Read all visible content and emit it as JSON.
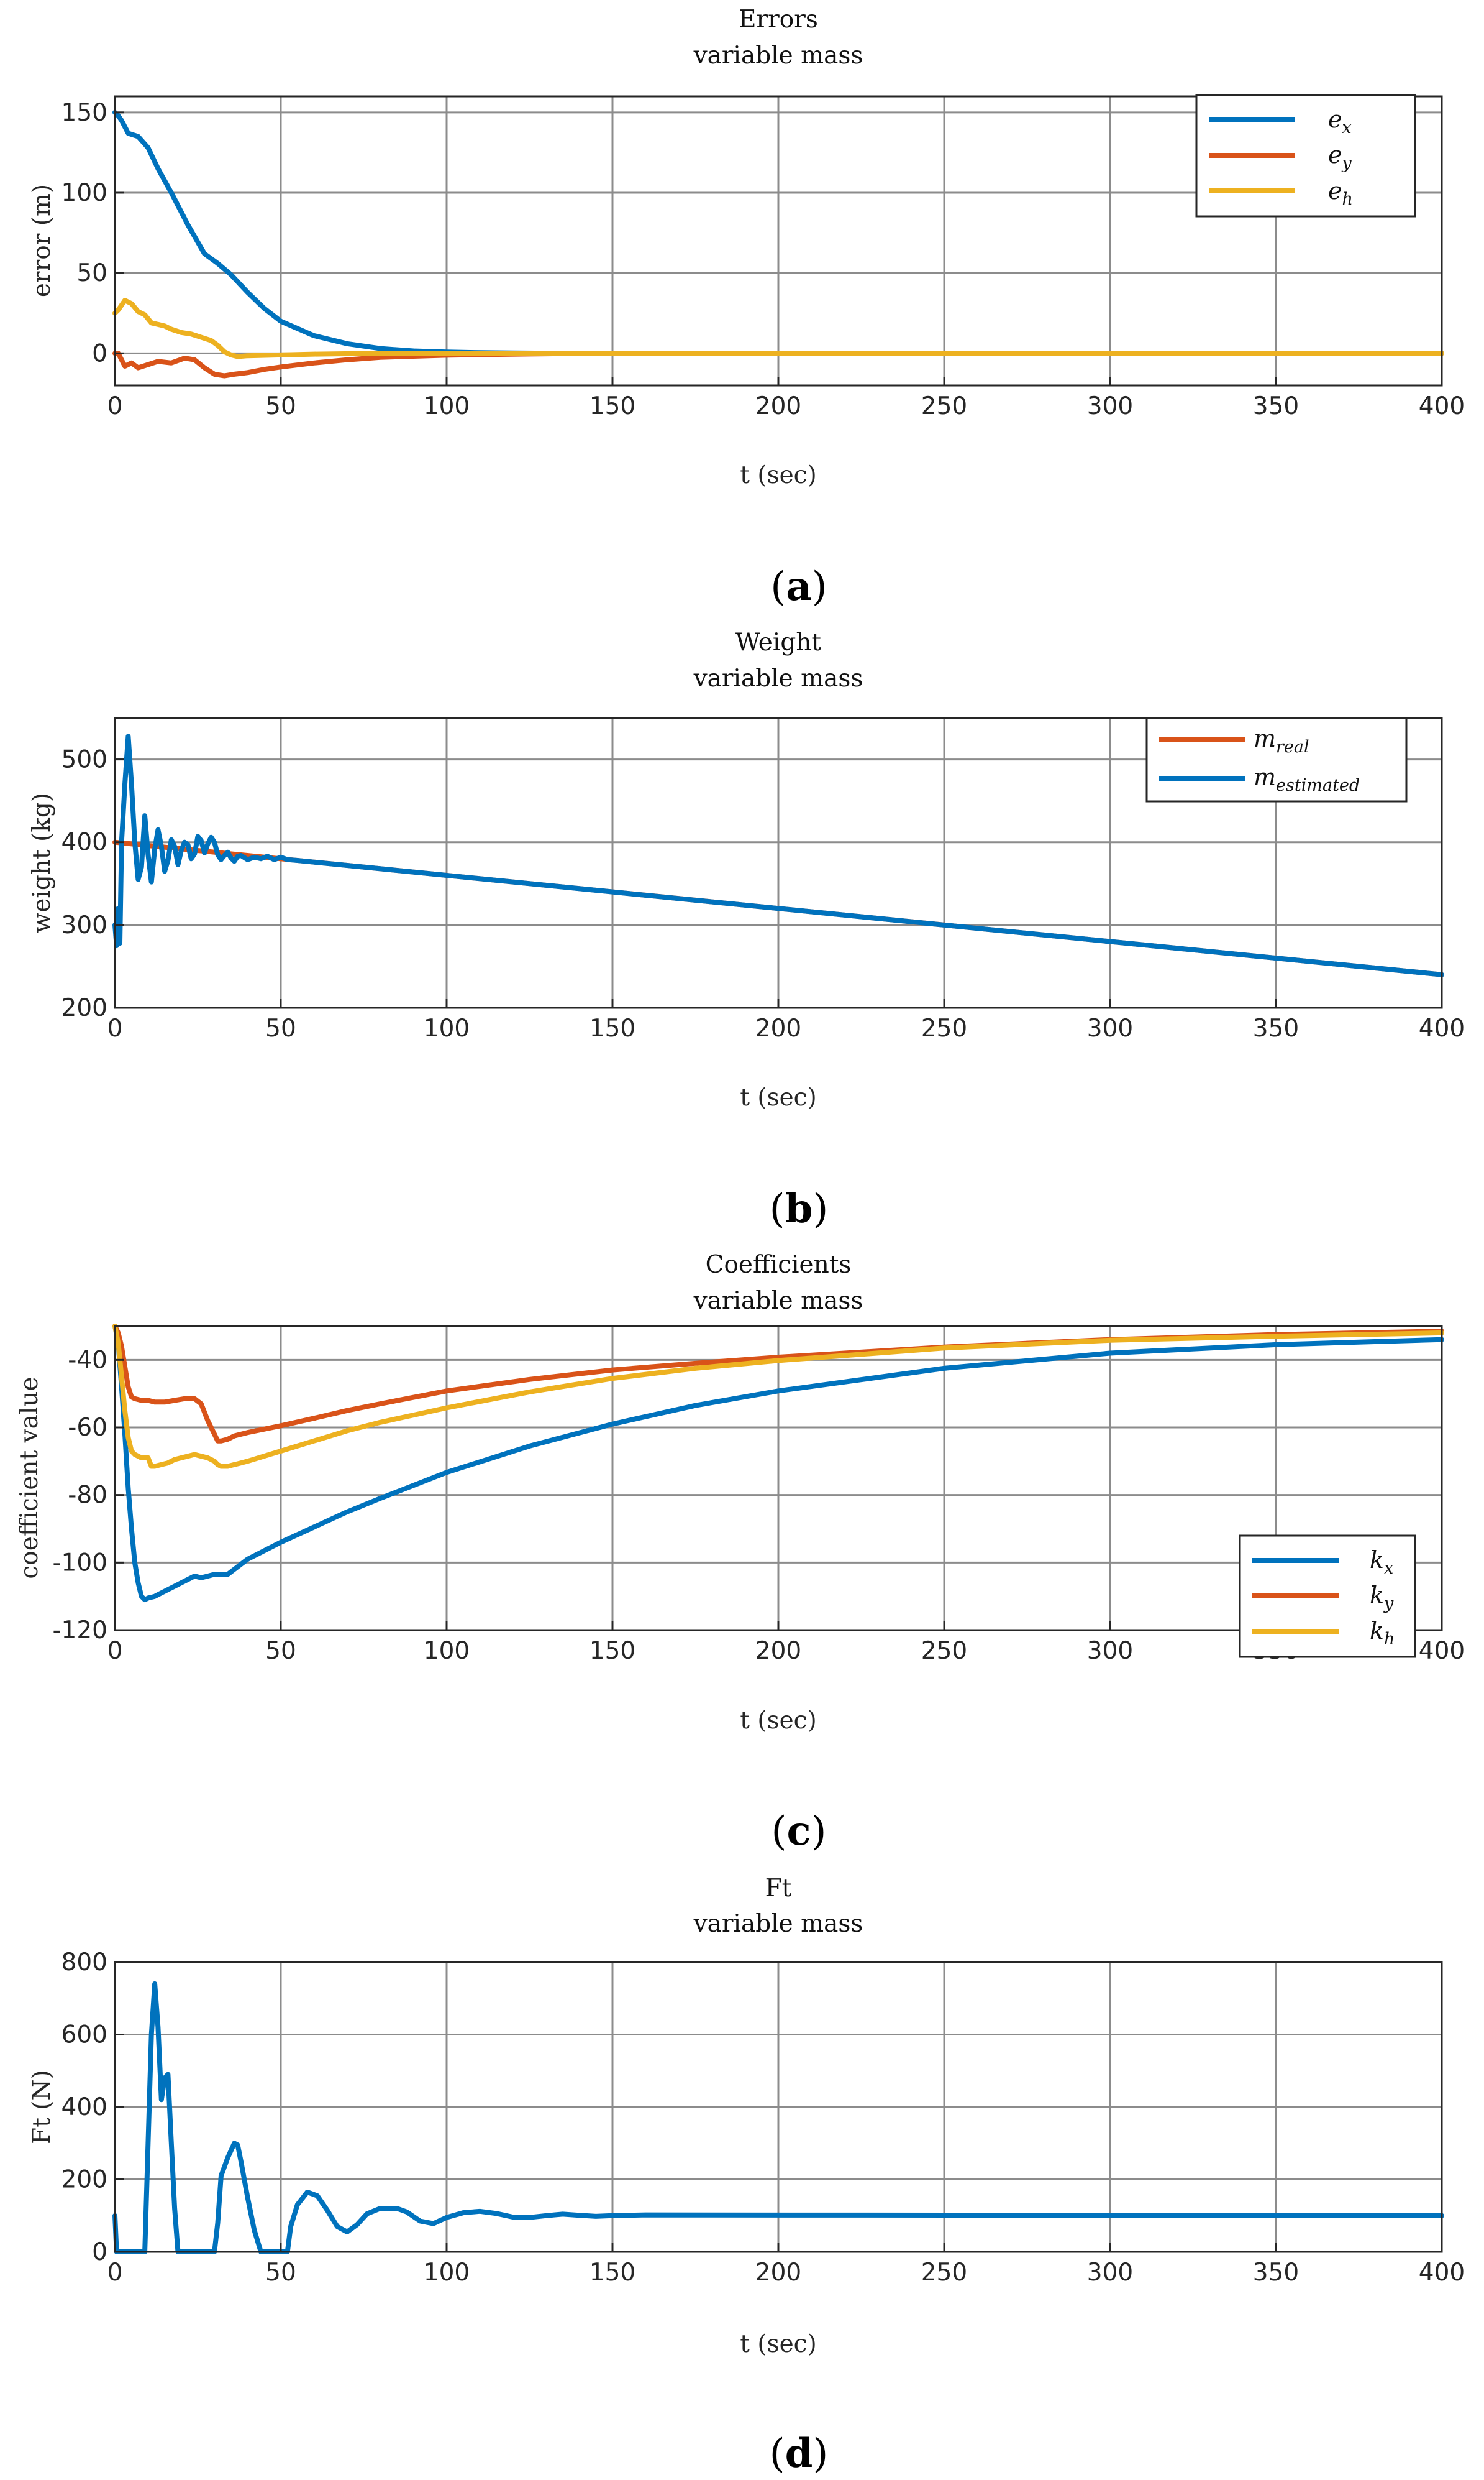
{
  "chart_data": [
    {
      "id": "a",
      "type": "line",
      "title": "Errors",
      "subtitle": "variable mass",
      "xlabel": "t (sec)",
      "ylabel": "error (m)",
      "xlim": [
        0,
        400
      ],
      "ylim": [
        -20,
        160
      ],
      "xticks": [
        0,
        50,
        100,
        150,
        200,
        250,
        300,
        350,
        400
      ],
      "yticks": [
        0,
        50,
        100,
        150
      ],
      "grid": true,
      "legend_position": "top-right",
      "caption": "(a)",
      "series": [
        {
          "name": "e_x",
          "label_base": "e",
          "label_sub": "x",
          "color": "#0072BD",
          "x": [
            0,
            1,
            2,
            4,
            7,
            10,
            13,
            17,
            22,
            27,
            31,
            35,
            40,
            45,
            50,
            60,
            70,
            80,
            90,
            100,
            110,
            120,
            130,
            140,
            150,
            165,
            400
          ],
          "y": [
            150,
            148,
            145,
            137,
            135,
            128,
            115,
            100,
            80,
            62,
            56,
            49,
            38,
            28,
            20,
            11,
            6,
            3,
            1.5,
            0.8,
            0.4,
            0.2,
            0.1,
            0.1,
            0.1,
            0,
            0
          ]
        },
        {
          "name": "e_y",
          "label_base": "e",
          "label_sub": "y",
          "color": "#D95319",
          "x": [
            0,
            1,
            3,
            5,
            7,
            10,
            13,
            17,
            21,
            24,
            27,
            30,
            33,
            36,
            40,
            45,
            50,
            60,
            70,
            80,
            90,
            100,
            110,
            125,
            140,
            170,
            400
          ],
          "y": [
            0,
            0,
            -8,
            -6,
            -9,
            -7,
            -5,
            -6,
            -3,
            -4,
            -9,
            -13,
            -14,
            -13,
            -12,
            -10,
            -8.5,
            -6,
            -4,
            -2.5,
            -1.8,
            -1.2,
            -0.8,
            -0.4,
            -0.1,
            0,
            0
          ]
        },
        {
          "name": "e_h",
          "label_base": "e",
          "label_sub": "h",
          "color": "#EDB120",
          "x": [
            0,
            1,
            3,
            5,
            7,
            9,
            11,
            13,
            15,
            17,
            20,
            23,
            26,
            29,
            31,
            33,
            35,
            37,
            40,
            50,
            60,
            80,
            400
          ],
          "y": [
            25,
            27,
            33,
            31,
            26,
            24,
            19,
            18,
            17,
            15,
            13,
            12,
            10,
            8,
            5,
            1,
            -1,
            -2,
            -1.5,
            -1,
            -0.5,
            0,
            0
          ]
        }
      ]
    },
    {
      "id": "b",
      "type": "line",
      "title": "Weight",
      "subtitle": "variable mass",
      "xlabel": "t (sec)",
      "ylabel": "weight (kg)",
      "xlim": [
        0,
        400
      ],
      "ylim": [
        200,
        550
      ],
      "xticks": [
        0,
        50,
        100,
        150,
        200,
        250,
        300,
        350,
        400
      ],
      "yticks": [
        200,
        300,
        400,
        500
      ],
      "grid": true,
      "legend_position": "top-right",
      "caption": "(b)",
      "series": [
        {
          "name": "m_real",
          "label_base": "m",
          "label_sub": "real",
          "color": "#D95319",
          "x": [
            0,
            400
          ],
          "y": [
            400,
            240
          ]
        },
        {
          "name": "m_estimated",
          "label_base": "m",
          "label_sub": "estimated",
          "color": "#0072BD",
          "x": [
            0,
            0.5,
            1,
            1.5,
            2,
            3,
            4,
            5,
            6,
            7,
            8,
            9,
            10,
            11,
            12,
            13,
            14,
            15,
            16,
            17,
            18,
            19,
            20,
            21,
            22,
            23,
            24,
            25,
            26,
            27,
            28,
            29,
            30,
            31,
            32,
            33,
            34,
            35,
            36,
            37,
            38,
            40,
            42,
            44,
            46,
            48,
            50,
            52,
            55,
            60,
            70,
            400
          ],
          "y": [
            300,
            275,
            320,
            278,
            400,
            470,
            528,
            470,
            400,
            355,
            370,
            432,
            385,
            352,
            392,
            415,
            395,
            365,
            378,
            403,
            395,
            373,
            390,
            400,
            397,
            380,
            386,
            407,
            402,
            387,
            398,
            406,
            400,
            385,
            379,
            384,
            388,
            381,
            377,
            383,
            384,
            379,
            382,
            380,
            383,
            379,
            382,
            379,
            378,
            376,
            372,
            240
          ]
        }
      ]
    },
    {
      "id": "c",
      "type": "line",
      "title": "Coefficients",
      "subtitle": "variable mass",
      "xlabel": "t (sec)",
      "ylabel": "coefficient value",
      "xlim": [
        0,
        400
      ],
      "ylim": [
        -120,
        -30
      ],
      "xticks": [
        0,
        50,
        100,
        150,
        200,
        250,
        300,
        350,
        400
      ],
      "yticks": [
        -120,
        -100,
        -80,
        -60,
        -40
      ],
      "grid": true,
      "legend_position": "bottom-right",
      "caption": "(c)",
      "series": [
        {
          "name": "k_x",
          "label_base": "k",
          "label_sub": "x",
          "color": "#0072BD",
          "x": [
            0,
            1,
            2,
            3,
            4,
            5,
            6,
            7,
            8,
            9,
            10,
            12,
            14,
            16,
            18,
            20,
            22,
            24,
            26,
            28,
            30,
            32,
            34,
            36,
            38,
            40,
            50,
            60,
            70,
            80,
            100,
            125,
            150,
            175,
            200,
            250,
            300,
            350,
            400
          ],
          "y": [
            -30,
            -35,
            -48,
            -62,
            -78,
            -90,
            -100,
            -106,
            -110,
            -111,
            -110.5,
            -110,
            -109,
            -108,
            -107,
            -106,
            -105,
            -104,
            -104.5,
            -104,
            -103.5,
            -103.5,
            -103.5,
            -102,
            -100.5,
            -99,
            -94,
            -89.5,
            -85,
            -81,
            -73.3,
            -65.5,
            -59,
            -53.5,
            -49.2,
            -42.5,
            -38,
            -35.5,
            -34
          ]
        },
        {
          "name": "k_y",
          "label_base": "k",
          "label_sub": "y",
          "color": "#D95319",
          "x": [
            0,
            1,
            2,
            3,
            4,
            5,
            6,
            8,
            10,
            12,
            15,
            18,
            21,
            24,
            26,
            28,
            30,
            31,
            32,
            34,
            36,
            40,
            50,
            60,
            70,
            80,
            100,
            125,
            150,
            175,
            200,
            250,
            300,
            350,
            400
          ],
          "y": [
            -30,
            -32,
            -36,
            -42,
            -48,
            -51,
            -51.5,
            -52,
            -52,
            -52.5,
            -52.5,
            -52,
            -51.5,
            -51.5,
            -53,
            -58,
            -62,
            -64,
            -64,
            -63.5,
            -62.5,
            -61.5,
            -59.5,
            -57.3,
            -55,
            -53,
            -49.2,
            -45.8,
            -43,
            -41,
            -39.2,
            -36.2,
            -34,
            -32.5,
            -31.5
          ]
        },
        {
          "name": "k_h",
          "label_base": "k",
          "label_sub": "h",
          "color": "#EDB120",
          "x": [
            0,
            1,
            2,
            3,
            4,
            5,
            6,
            8,
            10,
            11,
            12,
            14,
            16,
            18,
            20,
            22,
            24,
            26,
            28,
            30,
            31,
            32,
            34,
            36,
            38,
            40,
            50,
            60,
            70,
            80,
            100,
            125,
            150,
            175,
            200,
            250,
            300,
            350,
            400
          ],
          "y": [
            -30,
            -35,
            -45,
            -55,
            -63,
            -67,
            -68,
            -69,
            -69,
            -71.5,
            -71.5,
            -71,
            -70.5,
            -69.5,
            -69,
            -68.5,
            -68,
            -68.5,
            -69,
            -70,
            -71,
            -71.5,
            -71.5,
            -71,
            -70.5,
            -70,
            -67,
            -64,
            -61,
            -58.5,
            -54.2,
            -49.5,
            -45.5,
            -42.5,
            -40.2,
            -36.5,
            -34.2,
            -33,
            -32
          ]
        }
      ]
    },
    {
      "id": "d",
      "type": "line",
      "title": "Ft",
      "subtitle": "variable mass",
      "xlabel": "t (sec)",
      "ylabel": "Ft (N)",
      "xlim": [
        0,
        400
      ],
      "ylim": [
        0,
        800
      ],
      "xticks": [
        0,
        50,
        100,
        150,
        200,
        250,
        300,
        350,
        400
      ],
      "yticks": [
        0,
        200,
        400,
        600,
        800
      ],
      "grid": true,
      "legend_position": "none",
      "caption": "(d)",
      "series": [
        {
          "name": "Ft",
          "label_base": "Ft",
          "label_sub": "",
          "color": "#0072BD",
          "x": [
            0,
            0.5,
            1,
            9,
            10,
            11,
            12,
            13,
            14,
            15,
            16,
            17,
            18,
            19,
            20,
            30,
            31,
            32,
            34,
            36,
            37,
            38,
            40,
            42,
            44,
            45,
            46,
            48,
            52,
            53,
            55,
            58,
            61,
            64,
            67,
            70,
            73,
            76,
            80,
            85,
            88,
            92,
            96,
            100,
            105,
            110,
            115,
            120,
            125,
            130,
            135,
            140,
            145,
            150,
            160,
            400
          ],
          "y": [
            100,
            0,
            0,
            0,
            300,
            600,
            740,
            620,
            420,
            480,
            490,
            300,
            120,
            0,
            0,
            0,
            80,
            210,
            260,
            300,
            295,
            250,
            150,
            60,
            0,
            0,
            0,
            0,
            0,
            70,
            130,
            165,
            155,
            115,
            70,
            55,
            75,
            105,
            120,
            120,
            110,
            85,
            78,
            95,
            108,
            112,
            106,
            96,
            95,
            100,
            104,
            101,
            98,
            100,
            102,
            100
          ]
        }
      ]
    }
  ]
}
